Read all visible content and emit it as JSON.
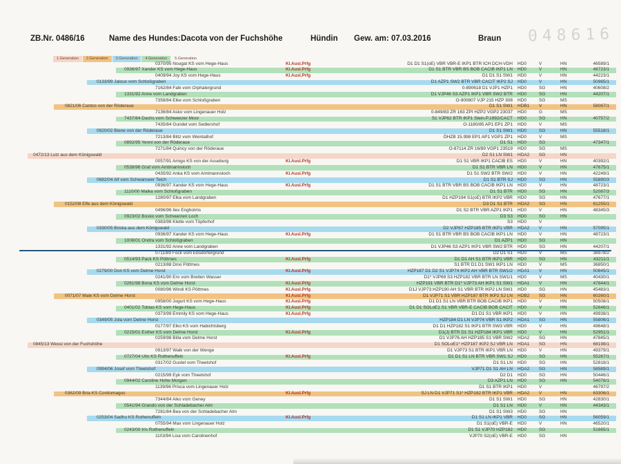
{
  "header": {
    "zb": "ZB.Nr. 0486/16",
    "name_label": "Name des Hundes:",
    "dog_name": "Dacota von der Fuchshöhe",
    "sex": "Hündin",
    "dob_label": "Gew. am:",
    "dob": "07.03.2016",
    "color": "Braun",
    "perforation_number": "048616"
  },
  "legend": [
    {
      "label": "1.Generation",
      "color": "#f5d6c9"
    },
    {
      "label": "2.Generation",
      "color": "#f1c382"
    },
    {
      "label": "3.Generation",
      "color": "#a7daef"
    },
    {
      "label": "4.Generation",
      "color": "#b2e0ba"
    },
    {
      "label": "5.Generation",
      "color": ""
    }
  ],
  "colors": {
    "generation_bands": {
      "1": "#f5d6c9",
      "2": "#f1c382",
      "3": "#a7daef",
      "4": "#b2e0ba",
      "5": ""
    },
    "prfg_red": "#b43527",
    "divider_blue": "#23557f"
  },
  "separator_after_row": 31,
  "rows": [
    {
      "g": 5,
      "n": "0370/95 Nougat KS vom Hege-Haus",
      "p": "Kl.Ausl.Prfg",
      "t": "D1 D1 S1(oE) VBR VBR-E IKP1 BTR ICH DCH-VDH",
      "hd": "HD0",
      "gr": "V",
      "rg": "HN",
      "nr": "46589/1"
    },
    {
      "g": 4,
      "n": "0936/97 Xander KS vom Hege-Haus",
      "p": "Kl.Ausl.Prfg",
      "t": "D1 S1 BTR VBR BS BOB CACIB IKP1 LN",
      "hd": "HD0",
      "gr": "V",
      "rg": "HN",
      "nr": "48723/1"
    },
    {
      "g": 5,
      "n": "0409/94 Joy KS vom Hege-Haus",
      "p": "Kl.Ausl.Prfg",
      "t": "D1 D1 S1 SW1",
      "hd": "HD0",
      "gr": "V",
      "rg": "HN",
      "nr": "44223/1"
    },
    {
      "g": 3,
      "n": "0133/99 Jaloux vom Schloßgraben",
      "p": "",
      "t": "D1 AZP1 SW2 BTR VBR CACIT IKP2 SJ",
      "hd": "HD0",
      "gr": "V",
      "rg": "HN",
      "nr": "50965/1"
    },
    {
      "g": 5,
      "n": "7162/84 Falk vom Orphalergrund",
      "p": "",
      "t": "0-890618 D1 VJP1 HZP1",
      "hd": "HD0",
      "gr": "SG",
      "rg": "HN",
      "nr": "40608/2"
    },
    {
      "g": 4,
      "n": "1331/92 Anne vom Landgraben",
      "p": "",
      "t": "D1 VJP46 S3 AZP1 IKP1 VBR SW2 BTR",
      "hd": "HD0",
      "gr": "SG",
      "rg": "HN",
      "nr": "44207/1"
    },
    {
      "g": 5,
      "n": "7358/84 Elke vom Schloßgraben",
      "p": "",
      "t": "O-900807 VJP 215 HZP 308",
      "hd": "HD0",
      "gr": "SG",
      "rg": "MS",
      "nr": ""
    },
    {
      "g": 2,
      "n": "0821/06 Cantos von der Röderaue",
      "p": "",
      "t": "D1 S1 SW1",
      "hd": "HDB1",
      "gr": "V",
      "rg": "HN",
      "nr": "58067/1"
    },
    {
      "g": 5,
      "n": "7136/84 Asko vom Lingenauer Holz",
      "p": "",
      "t": "0-849/83 ZR 163 ZPI HZP2 VGP2 23037",
      "hd": "HD0",
      "gr": "G",
      "rg": "MS",
      "nr": ""
    },
    {
      "g": 4,
      "n": "7437/84 Dachs vom Schweezer Moor",
      "p": "",
      "t": "S1 VJP62 BTR IKP1 Stein.P.1992/CACT",
      "hd": "HD0",
      "gr": "SG",
      "rg": "HN",
      "nr": "40757/2"
    },
    {
      "g": 5,
      "n": "7435/84 Gundel vom Sedlershof",
      "p": "",
      "t": "O-1180/85 AP1 EP1 ZP1",
      "hd": "HD0",
      "gr": "V",
      "rg": "MS",
      "nr": ""
    },
    {
      "g": 3,
      "n": "0920/02 Biene von der Röderaue",
      "p": "",
      "t": "D1 S1 SW1",
      "hd": "HD0",
      "gr": "SG",
      "rg": "HN",
      "nr": "55518/1"
    },
    {
      "g": 5,
      "n": "7213/84 Blitz vom Weintalhof",
      "p": "",
      "t": "ÖHZB 15.998 EP1 AP1 VGP1 ZP1",
      "hd": "HD0",
      "gr": "V",
      "rg": "MS",
      "nr": ""
    },
    {
      "g": 4,
      "n": "0892/95 Yenni von der Röderaue",
      "p": "",
      "t": "D1 S1",
      "hd": "HD0",
      "gr": "SG",
      "rg": "",
      "nr": "47347/1"
    },
    {
      "g": 5,
      "n": "7271/84 Quincy von der Röderaue",
      "p": "",
      "t": "O-87114 ZR 16/89 VGP1 23519",
      "hd": "HD0",
      "gr": "SG",
      "rg": "MS",
      "nr": ""
    },
    {
      "g": 1,
      "n": "0472/13 Lutz aus dem Königswald",
      "p": "",
      "t": "D2 S1 LN SW1",
      "hd": "HDA2",
      "gr": "SG",
      "rg": "HN",
      "nr": ""
    },
    {
      "g": 5,
      "n": "0057/91 Amigo KS von der Asseburg",
      "p": "Kl.Ausl.Prfg",
      "t": "D1 S1 VBR IKP1 CACIB ES",
      "hd": "HD0",
      "gr": "V",
      "rg": "HN",
      "nr": "40392/1"
    },
    {
      "g": 4,
      "n": "0538/96 Graf vom Amtmannsloch",
      "p": "",
      "t": "D1 S1 BTR VBR LN",
      "hd": "HD0",
      "gr": "V",
      "rg": "HN",
      "nr": "47675/1"
    },
    {
      "g": 5,
      "n": "0435/92 Anka KS vom Amtmannsloch",
      "p": "Kl.Ausl.Prfg",
      "t": "D1 S1 SW2 BTR SW/2",
      "hd": "HD0",
      "gr": "V",
      "rg": "HN",
      "nr": "42249/1"
    },
    {
      "g": 3,
      "n": "0682/04 Alf vom Schwanseer Teich",
      "p": "",
      "t": "D1 S1 BTR SJ",
      "hd": "HD0",
      "gr": "SG",
      "rg": "HN",
      "nr": "55890/3"
    },
    {
      "g": 5,
      "n": "0936/97 Xander KS vom Hege-Haus",
      "p": "Kl.Ausl.Prfg",
      "t": "D1 S1 BTR VBR BS BOB CACIB IKP1 LN",
      "hd": "HD0",
      "gr": "V",
      "rg": "HN",
      "nr": "48723/1"
    },
    {
      "g": 4,
      "n": "1110/00 Maika vom Schloßgraben",
      "p": "",
      "t": "D1 S1 BTR",
      "hd": "HD0",
      "gr": "SG",
      "rg": "HN",
      "nr": "52087/3"
    },
    {
      "g": 5,
      "n": "1280/97 Elka vom Landgraben",
      "p": "",
      "t": "D1 HZP194 S1(oE) BTR IKP2 VBR",
      "hd": "HD0",
      "gr": "SG",
      "rg": "HN",
      "nr": "47677/1"
    },
    {
      "g": 2,
      "n": "0152/08 Elfe aus dem Königswald",
      "p": "",
      "t": "D3 D1 S1 BTR",
      "hd": "HDA2",
      "gr": "SG",
      "rg": "HN",
      "nr": "61255/1"
    },
    {
      "g": 5,
      "n": "0496/96 Ilex  Engholms",
      "p": "",
      "t": "D1 S2 BTR VBR AZP1 IKP1",
      "hd": "HD0",
      "gr": "V",
      "rg": "HN",
      "nr": "48345/3"
    },
    {
      "g": 4,
      "n": "0923/02 Bosko vom Schwarzen Loch",
      "p": "",
      "t": "D3 S3",
      "hd": "HD0",
      "gr": "SG",
      "rg": "HN",
      "nr": ""
    },
    {
      "g": 5,
      "n": "0383/98 Klette vom Töpferhof",
      "p": "",
      "t": "S3",
      "hd": "HD0",
      "gr": "V",
      "rg": "",
      "nr": ""
    },
    {
      "g": 3,
      "n": "0330/05 Briska aus dem Königswald",
      "p": "",
      "t": "D2 VJP67 HZP185 BTR IKP1 VBR",
      "hd": "HDA2",
      "gr": "V",
      "rg": "HN",
      "nr": "57095/1"
    },
    {
      "g": 5,
      "n": "0936/97 Xander KS vom Hege-Haus",
      "p": "Kl.Ausl.Prfg",
      "t": "D1 S1 BTR VBR BS BOB CACIB IKP1 LN",
      "hd": "HD0",
      "gr": "V",
      "rg": "HN",
      "nr": "48723/1"
    },
    {
      "g": 4,
      "n": "1008/01 Ondra vom Schloßgraben",
      "p": "",
      "t": "D1 AZP1",
      "hd": "HD0",
      "gr": "SG",
      "rg": "HN",
      "nr": ""
    },
    {
      "g": 5,
      "n": "1331/92 Anne vom Landgraben",
      "p": "",
      "t": "D1 VJP46 S3 AZP1 IKP1 VBR SW2 BTR",
      "hd": "HD0",
      "gr": "SG",
      "rg": "HN",
      "nr": "44207/1"
    },
    {
      "g": 5,
      "n": "0711/89 Fock vom Ebsdorfergrund",
      "p": "",
      "t": "D2 D1 S1",
      "hd": "HD0",
      "gr": "V",
      "rg": "MS",
      "nr": "38978/2"
    },
    {
      "g": 4,
      "n": "0514/93 Pack KS  Pöttmes",
      "p": "Kl.Ausl.Prfg",
      "t": "D1 D1 AH S1 BTR IKP1 VBR",
      "hd": "HD0",
      "gr": "SG",
      "rg": "HN",
      "nr": "43211/1"
    },
    {
      "g": 5,
      "n": "0213/88 Drixi  Pöttmes",
      "p": "",
      "t": "S1 BTR D1 D1 SW1 IKP1 LN",
      "hd": "HD0",
      "gr": "V",
      "rg": "MS",
      "nr": "36850/1"
    },
    {
      "g": 3,
      "n": "0279/00 Don KS vom Delme Horst",
      "p": "Kl.Ausl.Prfg",
      "t": "HZP187 D1 D2 S1 VJP74 IKP2 AH VBR BTR SW1/2",
      "hd": "HDA1",
      "gr": "V",
      "rg": "HN",
      "nr": "50845/1"
    },
    {
      "g": 5,
      "n": "0241/90 Ero vom Breiten Wasser",
      "p": "",
      "t": "D1* VJP69 S3 HZP182 VBR BTR LN SW1/1",
      "hd": "HD0",
      "gr": "V",
      "rg": "MS",
      "nr": "40430/1"
    },
    {
      "g": 4,
      "n": "0261/98 Bona KS vom Delme Horst",
      "p": "Kl.Ausl.Prfg",
      "t": "HZP191 VBR BTR D1* VJP73 AH IKP1 S1 SW1",
      "hd": "HDA1",
      "gr": "V",
      "rg": "HN",
      "nr": "47844/1"
    },
    {
      "g": 5,
      "n": "0080/96 Windi KS  Pöttmes",
      "p": "Kl.Ausl.Prfg",
      "t": "D1J VJP73 HZP190 AH S1 VBR BTR IKP2 LN SW1",
      "hd": "HD0",
      "gr": "SG",
      "rg": "HN",
      "nr": "45483/1"
    },
    {
      "g": 2,
      "n": "0071/07 Male KS vom Delme Horst",
      "p": "Kl.Ausl.Prfg",
      "t": "D1 VJP71 S1 VBR HZP187 BTR IKP2 SJ LN",
      "hd": "HDB2",
      "gr": "SG",
      "rg": "HN",
      "nr": "60260/1"
    },
    {
      "g": 5,
      "n": "0958/00 Jogurt KS vom Hege-Haus",
      "p": "Kl.Ausl.Prfg",
      "t": "D1 D1 S1 LN  VBR BTR BOB CACIB IKP1",
      "hd": "HD0",
      "gr": "V",
      "rg": "HN",
      "nr": "50508/1"
    },
    {
      "g": 4,
      "n": "0401/02 Tobias KS vom Hege-Haus",
      "p": "Kl.Ausl.Prfg",
      "t": "D1 D1 SOLoE1 S1 VBR VBR-E CACIB BOB CACIT",
      "hd": "HD0",
      "gr": "V",
      "rg": "HN",
      "nr": "52646/1"
    },
    {
      "g": 5,
      "n": "0373/99 Emmily KS vom Hege-Haus",
      "p": "Kl.Ausl.Prfg",
      "t": "D1 D1 S1 VBR IKP1",
      "hd": "HD0",
      "gr": "V",
      "rg": "HN",
      "nr": "49938/1"
    },
    {
      "g": 3,
      "n": "0349/05 Jola vom Delme Horst",
      "p": "",
      "t": "HZP184 D1 LN VJP74 VBR S1 IKP2",
      "hd": "HDA1",
      "gr": "SG",
      "rg": "HN",
      "nr": "55806/1"
    },
    {
      "g": 5,
      "n": "0177/97 Elko KS vom Habichtsberg",
      "p": "",
      "t": "D1 D1 HZP182 S1 IKP1 BTR SW3 VBR",
      "hd": "HD0",
      "gr": "V",
      "rg": "HN",
      "nr": "49648/1"
    },
    {
      "g": 4,
      "n": "0215/01 Esther KS vom Delme Horst",
      "p": "Kl.Ausl.Prfg",
      "t": "D1(J) BTR D1 S1 HZP184 IKP1 VBR",
      "hd": "HD0",
      "gr": "V",
      "rg": "HN",
      "nr": "52951/1"
    },
    {
      "g": 5,
      "n": "0259/98 Billa vom Delme Horst",
      "p": "",
      "t": "D1 VJP76 AH HZP185 S1 VBR SW2",
      "hd": "HDA2",
      "gr": "SG",
      "rg": "HN",
      "nr": "47845/1"
    },
    {
      "g": 1,
      "n": "0845/13 Wessi von der Fuchshöhe",
      "p": "",
      "t": "D1 SOLoE1* HZP187 IKP2 SJ VBR LN",
      "hd": "HDA1",
      "gr": "SG",
      "rg": "HN",
      "nr": "68198/1"
    },
    {
      "g": 5,
      "n": "0913/97 Walk von der Wenge",
      "p": "",
      "t": "D1 VJP73 S1 BTR IKP1 VBR LN",
      "hd": "HD0",
      "gr": "V",
      "rg": "HN",
      "nr": "49379/1"
    },
    {
      "g": 4,
      "n": "0727/04 Ullo KS  Rothenuffeln",
      "p": "Kl.Ausl.Prfg",
      "t": "D1 D1 S1 LN BTR VBR SW1 SJ",
      "hd": "HD0",
      "gr": "SG",
      "rg": "HN",
      "nr": "55267/1"
    },
    {
      "g": 5,
      "n": "0317/02 Gustel vom Theelshof",
      "p": "",
      "t": "D1 S1 LN",
      "hd": "HD0",
      "gr": "SG",
      "rg": "HN",
      "nr": "52818/1"
    },
    {
      "g": 3,
      "n": "0994/06 Josef vom Theelshof",
      "p": "",
      "t": "VJP71 D1 S1 AH LN",
      "hd": "HDA2",
      "gr": "SG",
      "rg": "HN",
      "nr": "58589/1"
    },
    {
      "g": 5,
      "n": "0215/99 Eyk vom Theelshof",
      "p": "",
      "t": "D2 D1",
      "hd": "HD0",
      "gr": "SG",
      "rg": "HN",
      "nr": "50446/1"
    },
    {
      "g": 4,
      "n": "0944/02 Caroline  Hohe Morgen",
      "p": "",
      "t": "D3 AZP1 LN",
      "hd": "HD0",
      "gr": "SG",
      "rg": "HN",
      "nr": "54076/1"
    },
    {
      "g": 5,
      "n": "1139/96 Prisca vom Lingenauer Holz",
      "p": "",
      "t": "D1 S1 BTR IKP1",
      "hd": "HD0",
      "gr": "V",
      "rg": "",
      "nr": "46797/2"
    },
    {
      "g": 2,
      "n": "0362/09 Bria KS  Contiomagus",
      "p": "Kl.Ausl.Prfg",
      "t": "SJ LN D1 VJP71 S1* HZP182 BTR IKP1 VBR",
      "hd": "HDA2",
      "gr": "V",
      "rg": "HN",
      "nr": "63306/1"
    },
    {
      "g": 5,
      "n": "7344/84 Aiko vom Geney",
      "p": "",
      "t": "D1 S1 SW1",
      "hd": "HD0",
      "gr": "SG",
      "rg": "HN",
      "nr": "42830/1"
    },
    {
      "g": 4,
      "n": "0541/94 Grando von der Schladebacher Alm",
      "p": "",
      "t": "D1 S1 LN",
      "hd": "HD0",
      "gr": "V",
      "rg": "HN",
      "nr": "44343/1"
    },
    {
      "g": 5,
      "n": "7281/84 Bea von der Schladebacher Alm",
      "p": "",
      "t": "D1 S1 SW3",
      "hd": "HD0",
      "gr": "SG",
      "rg": "HN",
      "nr": ""
    },
    {
      "g": 3,
      "n": "0253/04 Sadhu KS  Rothenuffeln",
      "p": "Kl.Ausl.Prfg",
      "t": "D1 S1 LN IKP1 VBR",
      "hd": "HD0",
      "gr": "SG",
      "rg": "HN",
      "nr": "56059/1"
    },
    {
      "g": 5,
      "n": "0755/94 Max vom Lingenauer Holz",
      "p": "",
      "t": "D1 S1(oE) VBR-E",
      "hd": "HD0",
      "gr": "V",
      "rg": "HN",
      "nr": "46520/1"
    },
    {
      "g": 4,
      "n": "0243/00 Iris  Rothenuffeln",
      "p": "",
      "t": "D1 S1 VJP70 HZP182",
      "hd": "HD0",
      "gr": "SG",
      "rg": "",
      "nr": "51665/1"
    },
    {
      "g": 5,
      "n": "1103/94 Lisa vom Carolinenhof",
      "p": "",
      "t": "VJP70 S2(oE) VBR-E",
      "hd": "HD0",
      "gr": "SG",
      "rg": "HN",
      "nr": ""
    }
  ]
}
